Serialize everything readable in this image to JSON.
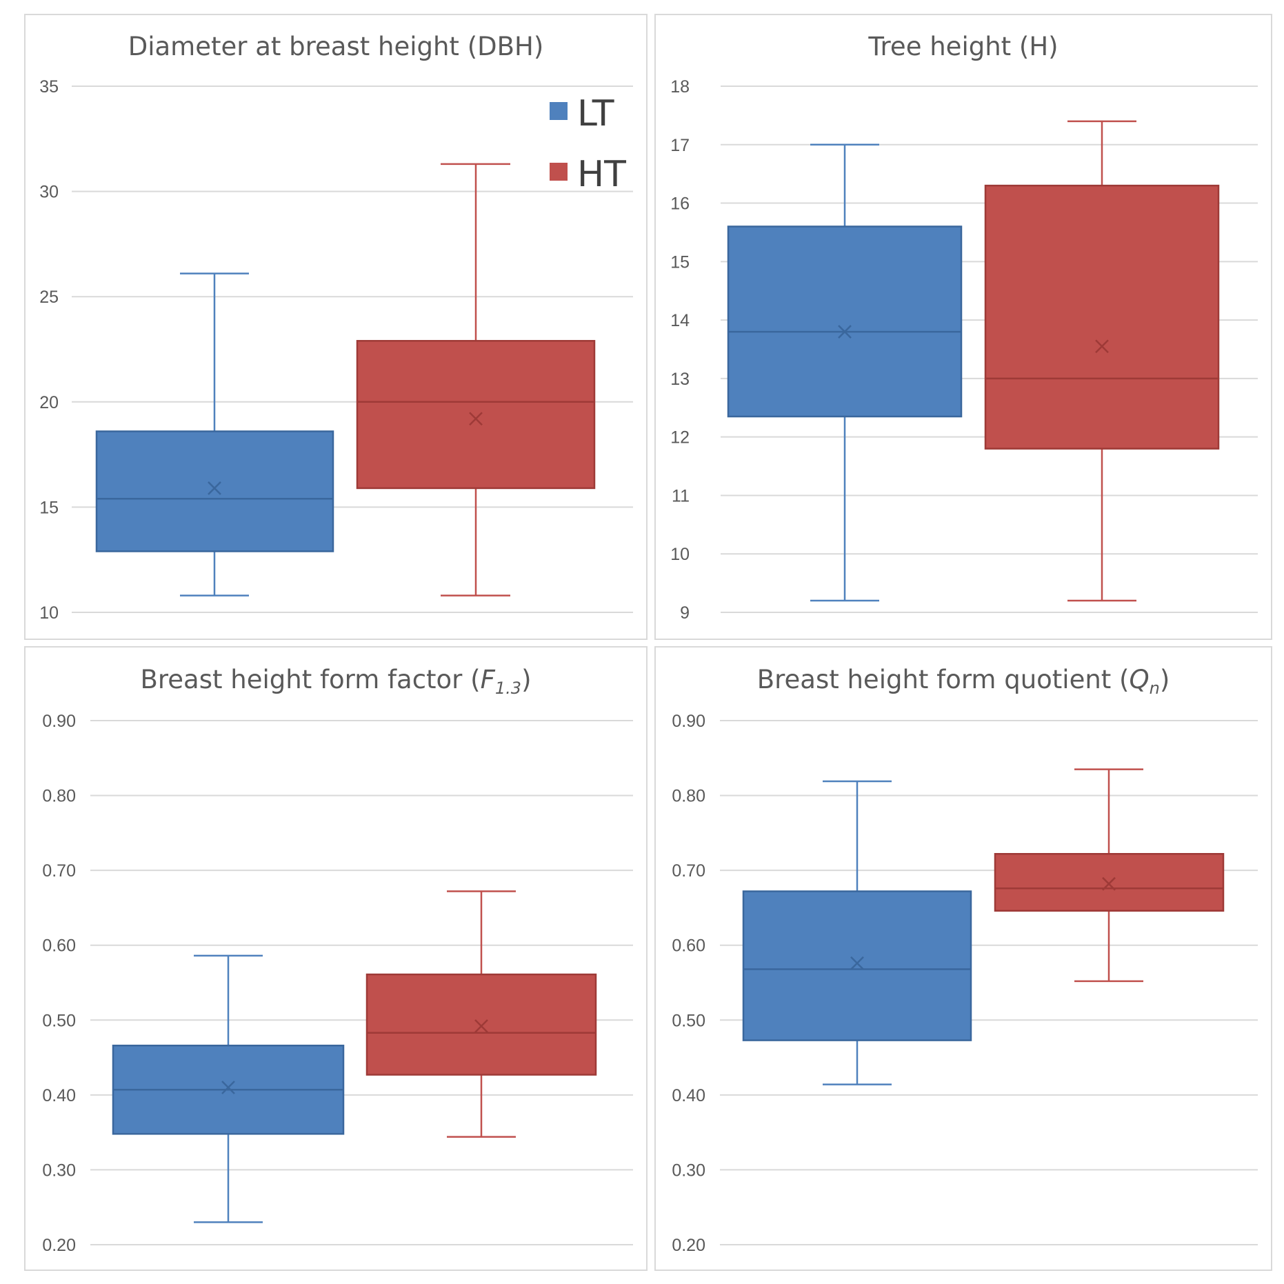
{
  "legend": {
    "items": [
      {
        "label": "LT",
        "color": "#4f81bd"
      },
      {
        "label": "HT",
        "color": "#c0504d"
      }
    ]
  },
  "colors": {
    "LT_fill": "#4f81bd",
    "LT_edge": "#3a679d",
    "HT_fill": "#c0504d",
    "HT_edge": "#9e3a37",
    "grid": "#d9d9d9",
    "text": "#595959"
  },
  "chart_data": [
    {
      "type": "box",
      "title": "Diameter at breast height (DBH)",
      "ylim": [
        10,
        35
      ],
      "yticks": [
        10,
        15,
        20,
        25,
        30,
        35
      ],
      "ytick_labels": [
        "10",
        "15",
        "20",
        "25",
        "30",
        "35"
      ],
      "series": [
        {
          "name": "LT",
          "min": 10.8,
          "q1": 12.9,
          "median": 15.4,
          "q3": 18.6,
          "max": 26.1,
          "mean": 15.9
        },
        {
          "name": "HT",
          "min": 10.8,
          "q1": 15.9,
          "median": 20.0,
          "q3": 22.9,
          "max": 31.3,
          "mean": 19.2
        }
      ]
    },
    {
      "type": "box",
      "title": "Tree height (H)",
      "ylim": [
        9,
        18
      ],
      "yticks": [
        9,
        10,
        11,
        12,
        13,
        14,
        15,
        16,
        17,
        18
      ],
      "ytick_labels": [
        "9",
        "10",
        "11",
        "12",
        "13",
        "14",
        "15",
        "16",
        "17",
        "18"
      ],
      "series": [
        {
          "name": "LT",
          "min": 9.2,
          "q1": 12.35,
          "median": 13.8,
          "q3": 15.6,
          "max": 17.0,
          "mean": 13.8
        },
        {
          "name": "HT",
          "min": 9.2,
          "q1": 11.8,
          "median": 13.0,
          "q3": 16.3,
          "max": 17.4,
          "mean": 13.55
        }
      ]
    },
    {
      "type": "box",
      "title": "Breast height form factor (",
      "title_symbol": "F",
      "title_sub": "1.3",
      "title_end": ")",
      "ylim": [
        0.2,
        0.9
      ],
      "yticks": [
        0.2,
        0.3,
        0.4,
        0.5,
        0.6,
        0.7,
        0.8,
        0.9
      ],
      "ytick_labels": [
        "0.20",
        "0.30",
        "0.40",
        "0.50",
        "0.60",
        "0.70",
        "0.80",
        "0.90"
      ],
      "series": [
        {
          "name": "LT",
          "min": 0.23,
          "q1": 0.348,
          "median": 0.407,
          "q3": 0.466,
          "max": 0.586,
          "mean": 0.41
        },
        {
          "name": "HT",
          "min": 0.344,
          "q1": 0.427,
          "median": 0.483,
          "q3": 0.561,
          "max": 0.672,
          "mean": 0.492
        }
      ]
    },
    {
      "type": "box",
      "title": "Breast height form quotient (",
      "title_symbol": "Q",
      "title_sub": "n",
      "title_end": ")",
      "ylim": [
        0.2,
        0.9
      ],
      "yticks": [
        0.2,
        0.3,
        0.4,
        0.5,
        0.6,
        0.7,
        0.8,
        0.9
      ],
      "ytick_labels": [
        "0.20",
        "0.30",
        "0.40",
        "0.50",
        "0.60",
        "0.70",
        "0.80",
        "0.90"
      ],
      "series": [
        {
          "name": "LT",
          "min": 0.414,
          "q1": 0.473,
          "median": 0.568,
          "q3": 0.672,
          "max": 0.819,
          "mean": 0.576
        },
        {
          "name": "HT",
          "min": 0.552,
          "q1": 0.646,
          "median": 0.676,
          "q3": 0.722,
          "max": 0.835,
          "mean": 0.682
        }
      ]
    }
  ]
}
